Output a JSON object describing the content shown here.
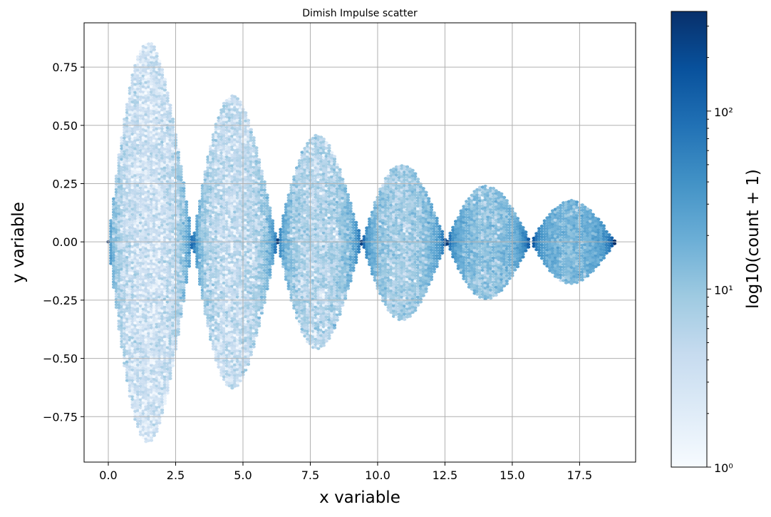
{
  "chart_data": {
    "type": "hexbin",
    "title": "Dimish Impulse scatter",
    "xlabel": "x variable",
    "ylabel": "y variable",
    "xlim": [
      -0.9,
      19.58
    ],
    "ylim": [
      -0.945,
      0.94
    ],
    "x_range_data": [
      0,
      18.85
    ],
    "envelope": {
      "formula": "y within ±exp(-0.1 x)·|sin x|",
      "decay": 0.1
    },
    "lobe_peaks": [
      {
        "x": 1.5,
        "amp": 0.85
      },
      {
        "x": 4.6,
        "amp": 0.62
      },
      {
        "x": 7.8,
        "amp": 0.46
      },
      {
        "x": 10.9,
        "amp": 0.33
      },
      {
        "x": 14.0,
        "amp": 0.24
      },
      {
        "x": 17.2,
        "amp": 0.18
      }
    ],
    "xticks": [
      0,
      2.5,
      5,
      7.5,
      10,
      12.5,
      15,
      17.5
    ],
    "xtick_labels": [
      "0.0",
      "2.5",
      "5.0",
      "7.5",
      "10.0",
      "12.5",
      "15.0",
      "17.5"
    ],
    "yticks": [
      0.75,
      0.5,
      0.25,
      0,
      -0.25,
      -0.5,
      -0.75
    ],
    "ytick_labels": [
      "0.75",
      "0.50",
      "0.25",
      "0.00",
      "−0.25",
      "−0.50",
      "−0.75"
    ],
    "grid": true,
    "colormap": "Blues",
    "colorbar": {
      "label": "log10(count + 1)",
      "scale": "log",
      "range": [
        1,
        363
      ],
      "ticks": [
        1,
        10,
        100
      ],
      "tick_labels": [
        "10⁰",
        "10¹",
        "10²"
      ]
    },
    "colors": [
      "#f7fbff",
      "#deebf7",
      "#c6dbef",
      "#9ecae1",
      "#6baed6",
      "#4292c6",
      "#2171b5",
      "#08519c",
      "#08306b"
    ]
  }
}
